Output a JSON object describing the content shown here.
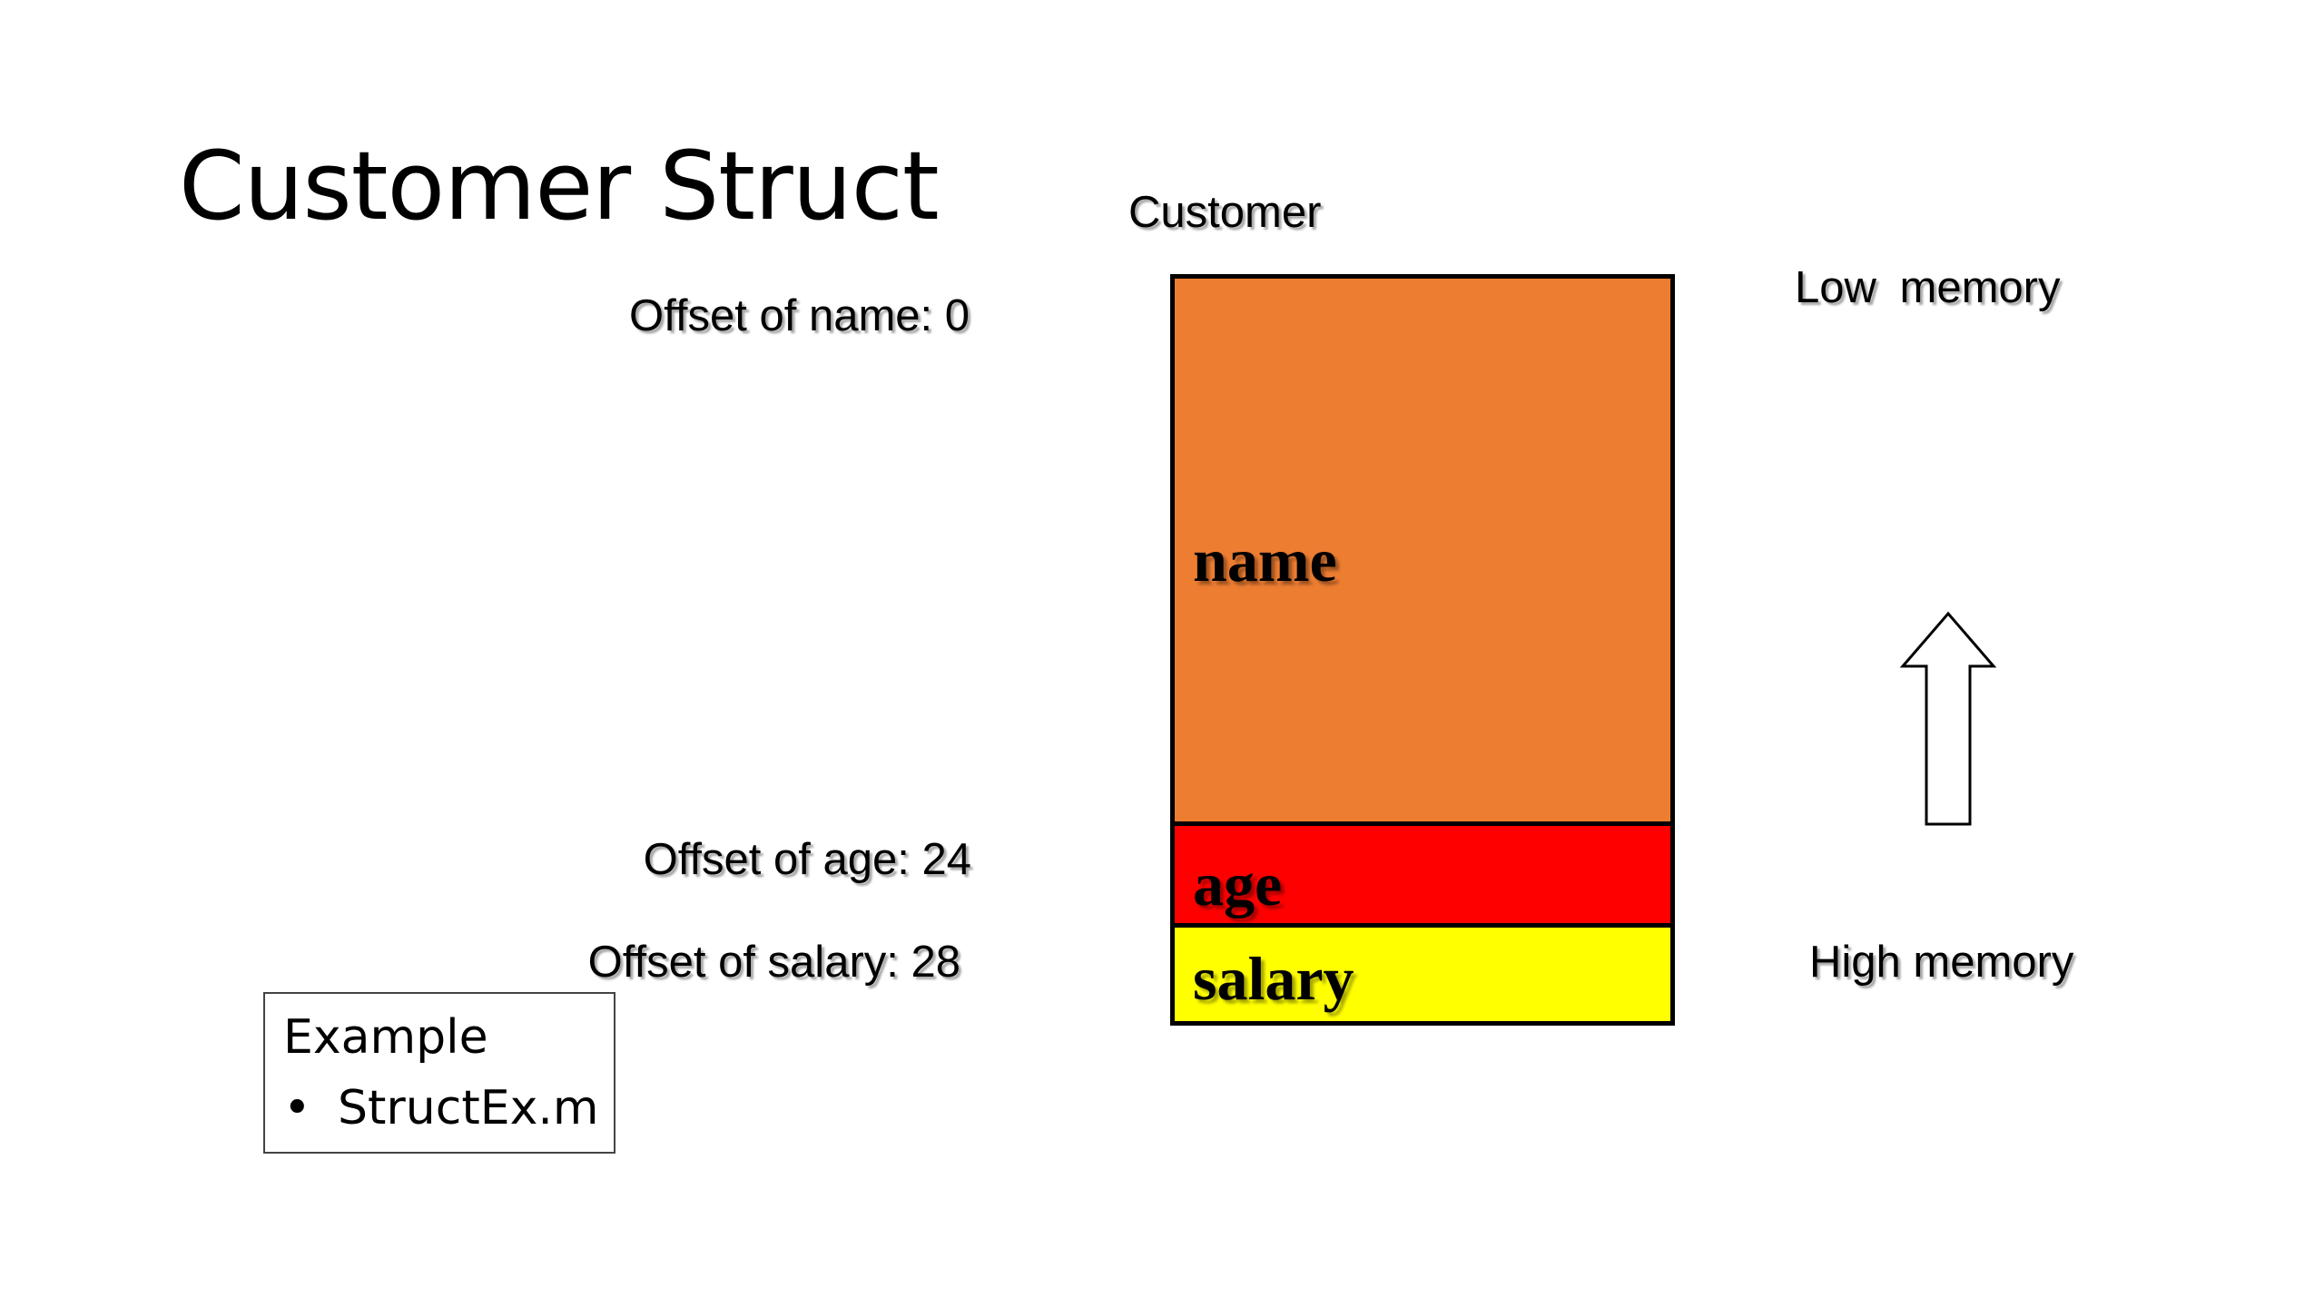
{
  "title": "Customer Struct",
  "struct": {
    "label": "Customer",
    "fields": [
      {
        "name": "name",
        "offset_label": "Offset of name: 0",
        "color": "#ED7D31"
      },
      {
        "name": "age",
        "offset_label": "Offset of age: 24",
        "color": "#FF0000"
      },
      {
        "name": "salary",
        "offset_label": "Offset of salary: 28",
        "color": "#FFFF00"
      }
    ]
  },
  "memory": {
    "low_label": "Low  memory",
    "high_label": "High memory",
    "arrow_icon": "up-arrow-icon"
  },
  "example": {
    "title": "Example",
    "items": [
      "StructEx.m"
    ]
  }
}
